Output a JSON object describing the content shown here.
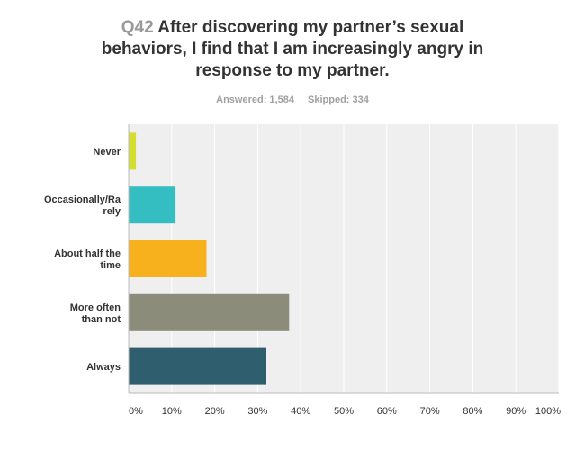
{
  "question": {
    "number": "Q42",
    "text": "After discovering my partner’s sexual behaviors, I find that I am increasingly angry in response to my partner."
  },
  "stats": {
    "answered": "Answered: 1,584",
    "skipped": "Skipped: 334"
  },
  "chart_data": {
    "type": "bar",
    "orientation": "horizontal",
    "categories": [
      [
        "Never"
      ],
      [
        "Occasionally/Ra",
        "rely"
      ],
      [
        "About half the",
        "time"
      ],
      [
        "More often",
        "than not"
      ],
      [
        "Always"
      ]
    ],
    "values": [
      1.7,
      10.9,
      18.1,
      37.3,
      32.0
    ],
    "colors": [
      "#d4de2f",
      "#35bec1",
      "#f7b11d",
      "#8b8c7a",
      "#2f5f6e"
    ],
    "xlim": [
      0,
      100
    ],
    "xticks": [
      "0%",
      "10%",
      "20%",
      "30%",
      "40%",
      "50%",
      "60%",
      "70%",
      "80%",
      "90%",
      "100%"
    ],
    "grid": true,
    "plot_background": "#efefef"
  }
}
